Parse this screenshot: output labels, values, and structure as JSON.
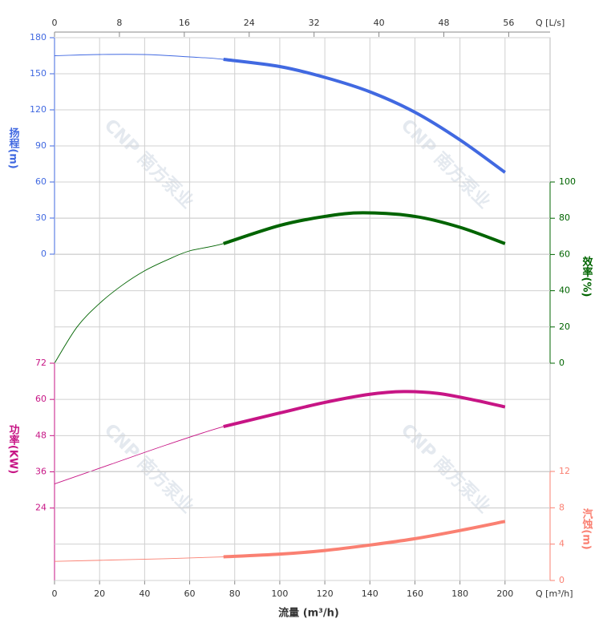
{
  "chart_data": {
    "type": "line",
    "x_label": "流量 (m³/h)",
    "x_unit_label": "Q [m³/h]",
    "x2_label": "Q [L/s]",
    "xlim": [
      0,
      220
    ],
    "xticks": [
      0,
      20,
      40,
      60,
      80,
      100,
      120,
      140,
      160,
      180,
      200
    ],
    "x2lim": [
      0,
      61.1
    ],
    "x2ticks": [
      0,
      8,
      16,
      24,
      32,
      40,
      48,
      56
    ],
    "bold_xlim": [
      75,
      200
    ],
    "grid": true,
    "watermarks": [
      "CNP 南方泵业",
      "CNP 南方泵业",
      "CNP 南方泵业",
      "CNP 南方泵业"
    ],
    "series": [
      {
        "name": "扬程(m)",
        "color": "#4169e1",
        "side": "left",
        "ylim": [
          0,
          180
        ],
        "yticks": [
          0,
          30,
          60,
          90,
          120,
          150,
          180
        ],
        "x": [
          0,
          20,
          40,
          60,
          75,
          100,
          120,
          140,
          160,
          180,
          200
        ],
        "values": [
          165,
          166,
          166,
          164,
          162,
          156,
          147,
          135,
          118,
          95,
          68
        ]
      },
      {
        "name": "效率(%)",
        "color": "#006400",
        "side": "right",
        "ylim": [
          0,
          100
        ],
        "yticks": [
          0,
          20,
          40,
          60,
          80,
          100
        ],
        "x": [
          0,
          10,
          20,
          30,
          40,
          50,
          60,
          75,
          100,
          120,
          137,
          160,
          180,
          200
        ],
        "values": [
          0,
          20,
          33,
          43,
          51,
          57,
          62,
          66,
          76,
          81,
          83,
          81,
          75,
          66
        ]
      },
      {
        "name": "功率(KW)",
        "color": "#c71585",
        "side": "left",
        "ylim": [
          0,
          72
        ],
        "yticks": [
          24,
          36,
          48,
          60,
          72
        ],
        "x": [
          0,
          25,
          50,
          75,
          100,
          120,
          140,
          155,
          170,
          185,
          200
        ],
        "values": [
          32,
          38.5,
          45,
          51,
          55.5,
          59,
          61.7,
          62.6,
          62,
          60,
          57.5
        ]
      },
      {
        "name": "汽蚀(m)",
        "color": "#fa8072",
        "side": "right",
        "ylim": [
          0,
          12
        ],
        "yticks": [
          0,
          4,
          8,
          12
        ],
        "x": [
          0,
          25,
          50,
          75,
          100,
          120,
          140,
          160,
          180,
          200
        ],
        "values": [
          2.1,
          2.25,
          2.4,
          2.6,
          2.9,
          3.3,
          3.9,
          4.6,
          5.5,
          6.5
        ]
      }
    ]
  }
}
